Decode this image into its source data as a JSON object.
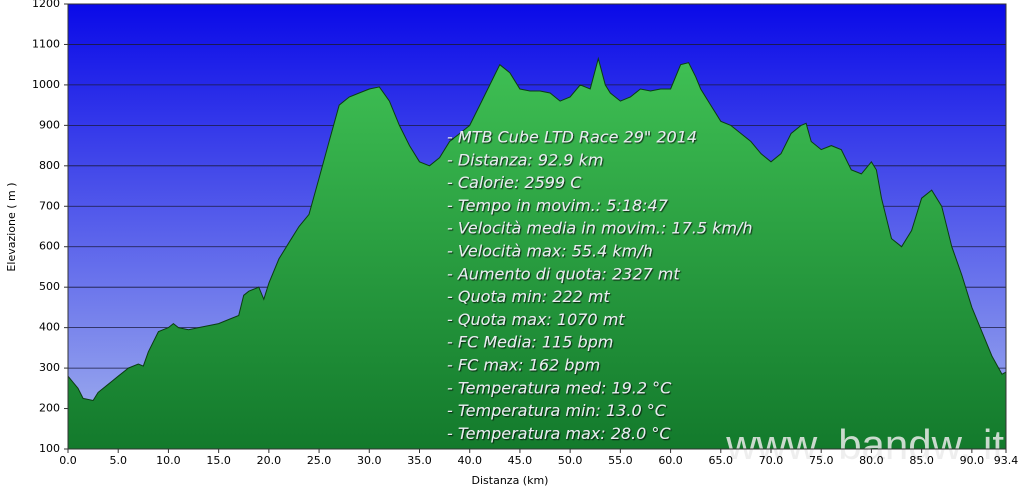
{
  "chart_data": {
    "type": "area",
    "x_label": "Distanza   (km)",
    "y_label": "Elevazione ( m )",
    "x": [
      0,
      1,
      1.5,
      2.5,
      3,
      4,
      5,
      6,
      7,
      7.5,
      8,
      9,
      10,
      10.5,
      11,
      12,
      13,
      14,
      15,
      16,
      17,
      17.5,
      18,
      19,
      19.5,
      20,
      21,
      22,
      23,
      24,
      25,
      26,
      27,
      28,
      29,
      30,
      31,
      32,
      33,
      34,
      35,
      36,
      37,
      38,
      39,
      40,
      41,
      42,
      43,
      44,
      45,
      46,
      47,
      48,
      49,
      50,
      51,
      52,
      52.8,
      53.5,
      54,
      55,
      56,
      57,
      58,
      59,
      60,
      61,
      61.8,
      62.5,
      63,
      64,
      65,
      66,
      67,
      68,
      69,
      70,
      71,
      72,
      73,
      73.5,
      74,
      75,
      76,
      77,
      78,
      79,
      80,
      80.5,
      81,
      82,
      83,
      84,
      85,
      86,
      87,
      88,
      89,
      90,
      91,
      92,
      93,
      93.4
    ],
    "values": [
      280,
      250,
      225,
      220,
      240,
      260,
      280,
      300,
      310,
      305,
      340,
      390,
      400,
      410,
      400,
      395,
      400,
      405,
      410,
      420,
      430,
      480,
      490,
      500,
      470,
      510,
      570,
      610,
      650,
      680,
      770,
      860,
      950,
      970,
      980,
      990,
      995,
      960,
      900,
      850,
      810,
      800,
      820,
      860,
      880,
      900,
      950,
      1000,
      1050,
      1030,
      990,
      985,
      985,
      980,
      960,
      970,
      1000,
      990,
      1065,
      1000,
      980,
      960,
      970,
      990,
      985,
      990,
      990,
      1050,
      1055,
      1020,
      990,
      950,
      910,
      900,
      880,
      860,
      830,
      810,
      830,
      880,
      900,
      905,
      860,
      840,
      850,
      840,
      790,
      780,
      810,
      790,
      720,
      620,
      600,
      640,
      720,
      740,
      700,
      600,
      530,
      450,
      390,
      330,
      285,
      290
    ],
    "xlim": [
      0,
      93.4
    ],
    "ylim": [
      100,
      1200
    ],
    "xticks": [
      {
        "value": 0,
        "label": "0.0"
      },
      {
        "value": 5,
        "label": "5.0"
      },
      {
        "value": 10,
        "label": "10.0"
      },
      {
        "value": 15,
        "label": "15.0"
      },
      {
        "value": 20,
        "label": "20.0"
      },
      {
        "value": 25,
        "label": "25.0"
      },
      {
        "value": 30,
        "label": "30.0"
      },
      {
        "value": 35,
        "label": "35.0"
      },
      {
        "value": 40,
        "label": "40.0"
      },
      {
        "value": 45,
        "label": "45.0"
      },
      {
        "value": 50,
        "label": "50.0"
      },
      {
        "value": 55,
        "label": "55.0"
      },
      {
        "value": 60,
        "label": "60.0"
      },
      {
        "value": 65,
        "label": "65.0"
      },
      {
        "value": 70,
        "label": "70.0"
      },
      {
        "value": 75,
        "label": "75.0"
      },
      {
        "value": 80,
        "label": "80.0"
      },
      {
        "value": 85,
        "label": "85.0"
      },
      {
        "value": 90,
        "label": "90.0"
      },
      93.4
    ],
    "yticks": [
      100,
      200,
      300,
      400,
      500,
      600,
      700,
      800,
      900,
      1000,
      1100,
      1200
    ],
    "grid": true,
    "color": "#2aa040",
    "annotations": [
      "- MTB Cube LTD Race 29\" 2014",
      "- Distanza: 92.9 km",
      "- Calorie: 2599 C",
      "- Tempo in movim.: 5:18:47",
      "- Velocità media in movim.: 17.5 km/h",
      "- Velocità max: 55.4 km/h",
      "- Aumento di quota: 2327 mt",
      "- Quota min: 222 mt",
      "- Quota max: 1070 mt",
      "- FC Media: 115 bpm",
      "- FC max: 162 bpm",
      "- Temperatura med: 19.2 °C",
      "- Temperatura min: 13.0 °C",
      "- Temperatura max: 28.0 °C"
    ],
    "watermark": "www. bandw. it"
  }
}
